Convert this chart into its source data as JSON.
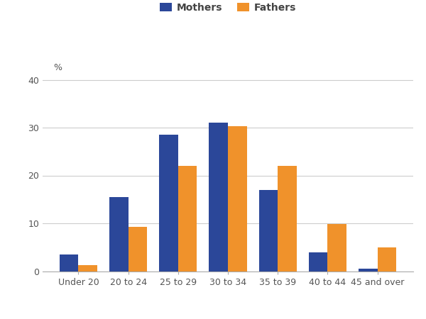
{
  "categories": [
    "Under 20",
    "20 to 24",
    "25 to 29",
    "30 to 34",
    "35 to 39",
    "40 to 44",
    "45 and over"
  ],
  "mothers": [
    3.5,
    15.5,
    28.5,
    31.0,
    17.0,
    4.0,
    0.5
  ],
  "fathers": [
    1.2,
    9.2,
    22.0,
    30.3,
    22.0,
    9.8,
    5.0
  ],
  "mothers_color": "#2b4799",
  "fathers_color": "#f0922b",
  "legend_labels": [
    "Mothers",
    "Fathers"
  ],
  "ylabel": "%",
  "ylim": [
    0,
    42
  ],
  "yticks": [
    0,
    10,
    20,
    30,
    40
  ],
  "bar_width": 0.38,
  "grid_color": "#cccccc",
  "axis_color": "#aaaaaa",
  "tick_label_fontsize": 9,
  "legend_fontsize": 10
}
